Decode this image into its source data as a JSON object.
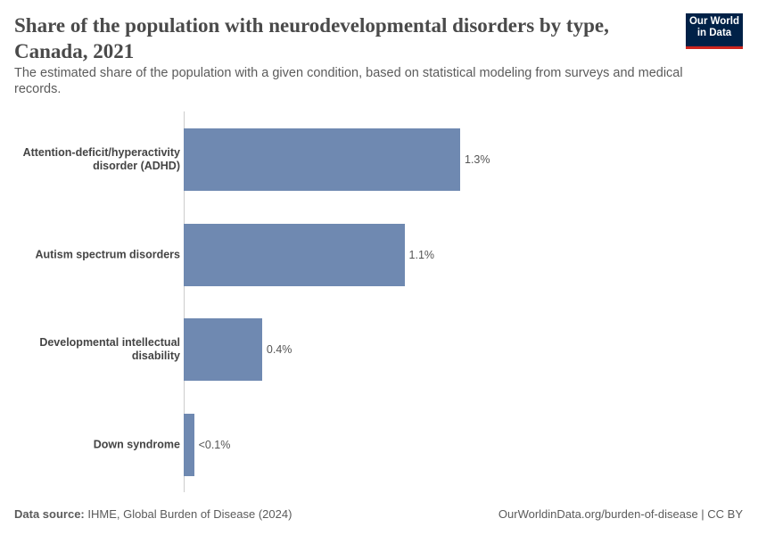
{
  "chart_data": {
    "type": "bar",
    "orientation": "horizontal",
    "title": "Share of the population with neurodevelopmental disorders by type, Canada, 2021",
    "subtitle": "The estimated share of the population with a given condition, based on statistical modeling from surveys and medical records.",
    "categories": [
      "Attention-deficit/hyperactivity disorder (ADHD)",
      "Autism spectrum disorders",
      "Developmental intellectual disability",
      "Down syndrome"
    ],
    "values": [
      1.34,
      1.07,
      0.38,
      0.05
    ],
    "value_labels": [
      "1.3%",
      "1.1%",
      "0.4%",
      "<0.1%"
    ],
    "color": "#6f89b1",
    "xlim": [
      0,
      1.34
    ],
    "source_label": "Data source:",
    "source": "IHME, Global Burden of Disease (2024)",
    "footer_right": "OurWorldinData.org/burden-of-disease | CC BY",
    "logo": "Our World in Data"
  }
}
